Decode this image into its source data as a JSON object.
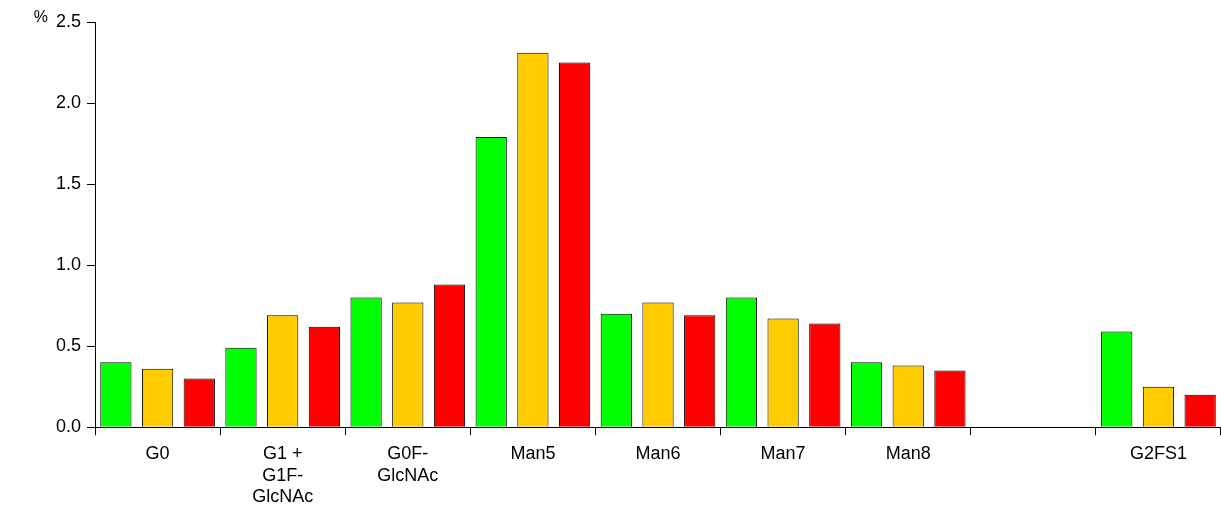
{
  "chart_data": {
    "type": "bar",
    "ylabel": "%",
    "categories": [
      "G0",
      "G1 + G1F- GlcNAc",
      "G0F- GlcNAc",
      "Man5",
      "Man6",
      "Man7",
      "Man8",
      null,
      "G2FS1"
    ],
    "series": [
      {
        "color": "#00ff00",
        "values": [
          0.4,
          0.49,
          0.8,
          1.79,
          0.7,
          0.8,
          0.4,
          null,
          0.59
        ]
      },
      {
        "color": "#ffcc00",
        "values": [
          0.36,
          0.69,
          0.77,
          2.31,
          0.77,
          0.67,
          0.38,
          null,
          0.25
        ]
      },
      {
        "color": "#ff0000",
        "values": [
          0.3,
          0.62,
          0.88,
          2.25,
          0.69,
          0.64,
          0.35,
          null,
          0.2
        ]
      }
    ],
    "ylim": [
      0,
      2.5
    ],
    "yticks": [
      {
        "value": 0,
        "label": "0.0"
      },
      {
        "value": 0.5,
        "label": "0.5"
      },
      {
        "value": 1,
        "label": "1.0"
      },
      {
        "value": 1.5,
        "label": "1.5"
      },
      {
        "value": 2,
        "label": "2.0"
      },
      {
        "value": 2.5,
        "label": "2.5"
      }
    ],
    "grid": false,
    "legend": false
  }
}
